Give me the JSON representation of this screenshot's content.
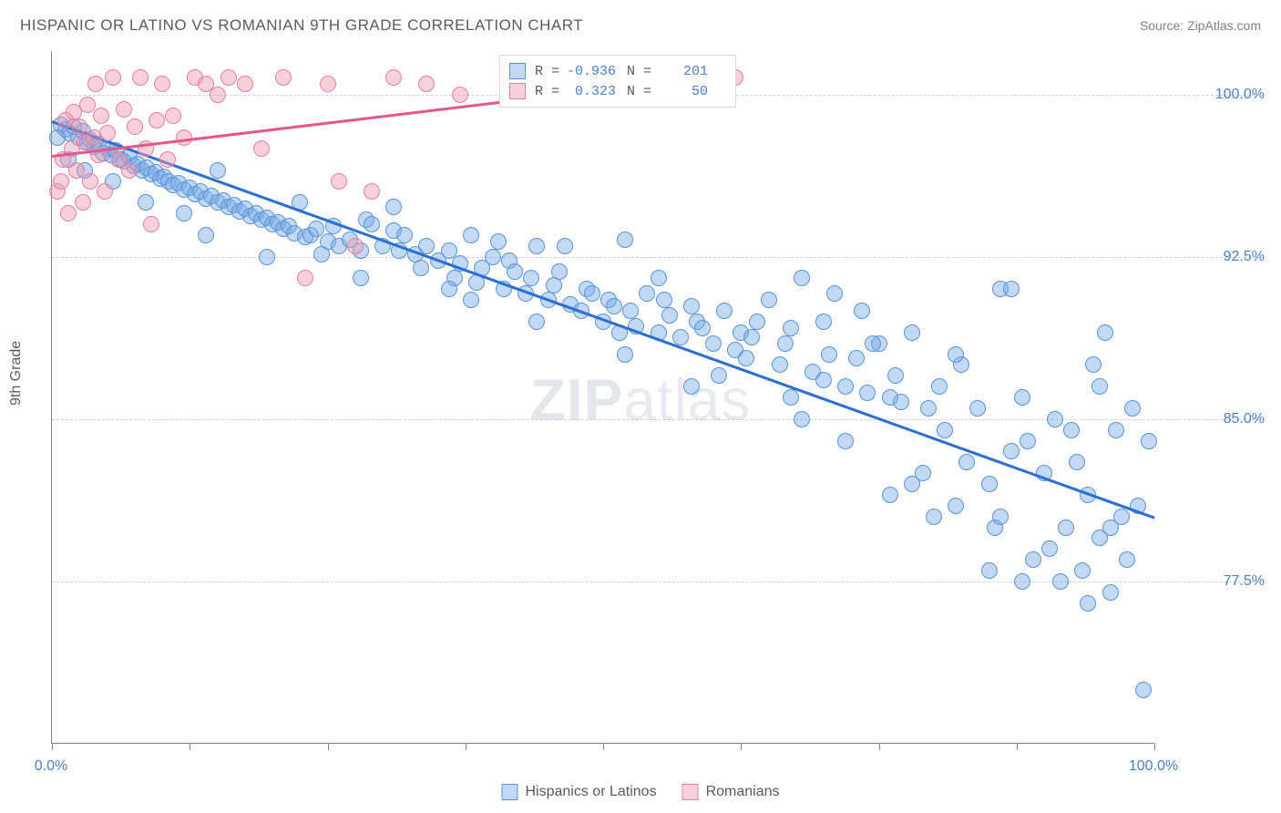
{
  "title": "HISPANIC OR LATINO VS ROMANIAN 9TH GRADE CORRELATION CHART",
  "source": "Source: ZipAtlas.com",
  "watermark_a": "ZIP",
  "watermark_b": "atlas",
  "ylabel": "9th Grade",
  "chart": {
    "type": "scatter",
    "xlim": [
      0,
      100
    ],
    "ylim": [
      70,
      102
    ],
    "ytick_labels": [
      "77.5%",
      "85.0%",
      "92.5%",
      "100.0%"
    ],
    "ytick_vals": [
      77.5,
      85.0,
      92.5,
      100.0
    ],
    "xtick_vals": [
      0,
      12.5,
      25,
      37.5,
      50,
      62.5,
      75,
      87.5,
      100
    ],
    "xtick_label_left": "0.0%",
    "xtick_label_right": "100.0%",
    "grid_color": "#d0d0d0",
    "axis_color": "#808080",
    "background_color": "#ffffff",
    "series": [
      {
        "name": "Hispanics or Latinos",
        "color_fill": "rgba(120,170,230,0.45)",
        "color_stroke": "#5a93d6",
        "marker_radius": 9,
        "trend_color": "#2a6fd6",
        "trend_width": 2.5,
        "trend_x0": 0,
        "trend_y0": 98.8,
        "trend_x1": 100,
        "trend_y1": 80.5,
        "R": "-0.936",
        "N": "201",
        "points": [
          [
            0.8,
            98.6
          ],
          [
            1.2,
            98.4
          ],
          [
            1.6,
            98.2
          ],
          [
            2.0,
            98.5
          ],
          [
            2.4,
            98.0
          ],
          [
            2.8,
            98.3
          ],
          [
            3.2,
            97.8
          ],
          [
            3.4,
            97.9
          ],
          [
            3.8,
            97.6
          ],
          [
            4.2,
            97.7
          ],
          [
            4.6,
            97.3
          ],
          [
            5.0,
            97.5
          ],
          [
            5.4,
            97.2
          ],
          [
            5.8,
            97.4
          ],
          [
            6.2,
            97.0
          ],
          [
            6.5,
            96.9
          ],
          [
            7.0,
            97.1
          ],
          [
            7.4,
            96.7
          ],
          [
            7.8,
            96.8
          ],
          [
            8.2,
            96.5
          ],
          [
            8.6,
            96.6
          ],
          [
            9.0,
            96.3
          ],
          [
            9.4,
            96.4
          ],
          [
            9.8,
            96.1
          ],
          [
            10.2,
            96.2
          ],
          [
            10.6,
            96.0
          ],
          [
            11.0,
            95.8
          ],
          [
            11.5,
            95.9
          ],
          [
            12.0,
            95.6
          ],
          [
            12.5,
            95.7
          ],
          [
            13.0,
            95.4
          ],
          [
            13.5,
            95.5
          ],
          [
            14.0,
            95.2
          ],
          [
            14.5,
            95.3
          ],
          [
            15.0,
            95.0
          ],
          [
            15.5,
            95.1
          ],
          [
            16.0,
            94.8
          ],
          [
            16.5,
            94.9
          ],
          [
            17.0,
            94.6
          ],
          [
            17.5,
            94.7
          ],
          [
            18.0,
            94.4
          ],
          [
            18.5,
            94.5
          ],
          [
            19.0,
            94.2
          ],
          [
            19.5,
            94.3
          ],
          [
            20.0,
            94.0
          ],
          [
            20.5,
            94.1
          ],
          [
            21.0,
            93.8
          ],
          [
            21.5,
            93.9
          ],
          [
            22.0,
            93.6
          ],
          [
            22.5,
            95.0
          ],
          [
            23.0,
            93.4
          ],
          [
            23.5,
            93.5
          ],
          [
            24.0,
            93.8
          ],
          [
            25.0,
            93.2
          ],
          [
            25.5,
            93.9
          ],
          [
            26.0,
            93.0
          ],
          [
            27.0,
            93.3
          ],
          [
            28.0,
            92.8
          ],
          [
            28.5,
            94.2
          ],
          [
            29.0,
            94.0
          ],
          [
            30.0,
            93.0
          ],
          [
            31.0,
            93.7
          ],
          [
            31.5,
            92.8
          ],
          [
            32.0,
            93.5
          ],
          [
            33.0,
            92.6
          ],
          [
            33.5,
            92.0
          ],
          [
            34.0,
            93.0
          ],
          [
            35.0,
            92.3
          ],
          [
            36.0,
            92.8
          ],
          [
            36.5,
            91.5
          ],
          [
            37.0,
            92.2
          ],
          [
            38.0,
            93.5
          ],
          [
            38.5,
            91.3
          ],
          [
            39.0,
            92.0
          ],
          [
            40.0,
            92.5
          ],
          [
            41.0,
            91.0
          ],
          [
            41.5,
            92.3
          ],
          [
            42.0,
            91.8
          ],
          [
            43.0,
            90.8
          ],
          [
            43.5,
            91.5
          ],
          [
            44.0,
            93.0
          ],
          [
            45.0,
            90.5
          ],
          [
            45.5,
            91.2
          ],
          [
            46.0,
            91.8
          ],
          [
            47.0,
            90.3
          ],
          [
            48.0,
            90.0
          ],
          [
            48.5,
            91.0
          ],
          [
            49.0,
            90.8
          ],
          [
            50.0,
            89.5
          ],
          [
            50.5,
            90.5
          ],
          [
            51.0,
            90.2
          ],
          [
            52.0,
            93.3
          ],
          [
            52.5,
            90.0
          ],
          [
            53.0,
            89.3
          ],
          [
            54.0,
            90.8
          ],
          [
            55.0,
            89.0
          ],
          [
            55.5,
            90.5
          ],
          [
            56.0,
            89.8
          ],
          [
            57.0,
            88.8
          ],
          [
            58.0,
            90.2
          ],
          [
            58.5,
            89.5
          ],
          [
            59.0,
            89.2
          ],
          [
            60.0,
            88.5
          ],
          [
            61.0,
            90.0
          ],
          [
            62.0,
            88.2
          ],
          [
            62.5,
            89.0
          ],
          [
            63.0,
            87.8
          ],
          [
            63.5,
            88.8
          ],
          [
            64.0,
            89.5
          ],
          [
            65.0,
            90.5
          ],
          [
            66.0,
            87.5
          ],
          [
            66.5,
            88.5
          ],
          [
            67.0,
            89.2
          ],
          [
            68.0,
            91.5
          ],
          [
            69.0,
            87.2
          ],
          [
            70.0,
            86.8
          ],
          [
            70.5,
            88.0
          ],
          [
            71.0,
            90.8
          ],
          [
            72.0,
            86.5
          ],
          [
            73.0,
            87.8
          ],
          [
            73.5,
            90.0
          ],
          [
            74.0,
            86.2
          ],
          [
            75.0,
            88.5
          ],
          [
            76.0,
            81.5
          ],
          [
            76.5,
            87.0
          ],
          [
            77.0,
            85.8
          ],
          [
            78.0,
            89.0
          ],
          [
            79.0,
            82.5
          ],
          [
            80.0,
            80.5
          ],
          [
            80.5,
            86.5
          ],
          [
            81.0,
            84.5
          ],
          [
            82.0,
            81.0
          ],
          [
            82.5,
            87.5
          ],
          [
            83.0,
            83.0
          ],
          [
            84.0,
            85.5
          ],
          [
            85.0,
            82.0
          ],
          [
            85.5,
            80.0
          ],
          [
            86.0,
            91.0
          ],
          [
            87.0,
            83.5
          ],
          [
            88.0,
            86.0
          ],
          [
            88.5,
            84.0
          ],
          [
            89.0,
            78.5
          ],
          [
            90.0,
            82.5
          ],
          [
            90.5,
            79.0
          ],
          [
            91.0,
            85.0
          ],
          [
            91.5,
            77.5
          ],
          [
            92.0,
            80.0
          ],
          [
            93.0,
            83.0
          ],
          [
            93.5,
            78.0
          ],
          [
            94.0,
            81.5
          ],
          [
            94.5,
            87.5
          ],
          [
            95.0,
            79.5
          ],
          [
            95.5,
            89.0
          ],
          [
            96.0,
            77.0
          ],
          [
            96.5,
            84.5
          ],
          [
            97.0,
            80.5
          ],
          [
            97.5,
            78.5
          ],
          [
            98.0,
            85.5
          ],
          [
            98.5,
            81.0
          ],
          [
            99.0,
            72.5
          ],
          [
            99.5,
            84.0
          ],
          [
            92.5,
            84.5
          ],
          [
            88.0,
            77.5
          ],
          [
            95.0,
            86.5
          ],
          [
            82.0,
            88.0
          ],
          [
            76.0,
            86.0
          ],
          [
            70.0,
            89.5
          ],
          [
            87.0,
            91.0
          ],
          [
            79.5,
            85.5
          ],
          [
            74.5,
            88.5
          ],
          [
            67.0,
            86.0
          ],
          [
            60.5,
            87.0
          ],
          [
            55.0,
            91.5
          ],
          [
            51.5,
            89.0
          ],
          [
            46.5,
            93.0
          ],
          [
            40.5,
            93.2
          ],
          [
            36.0,
            91.0
          ],
          [
            31.0,
            94.8
          ],
          [
            24.5,
            92.6
          ],
          [
            19.5,
            92.5
          ],
          [
            15.0,
            96.5
          ],
          [
            12.0,
            94.5
          ],
          [
            8.5,
            95.0
          ],
          [
            5.5,
            96.0
          ],
          [
            3.0,
            96.5
          ],
          [
            1.5,
            97.0
          ],
          [
            0.5,
            98.0
          ],
          [
            28.0,
            91.5
          ],
          [
            44.0,
            89.5
          ],
          [
            58.0,
            86.5
          ],
          [
            72.0,
            84.0
          ],
          [
            86.0,
            80.5
          ],
          [
            94.0,
            76.5
          ],
          [
            96.0,
            80.0
          ],
          [
            85.0,
            78.0
          ],
          [
            78.0,
            82.0
          ],
          [
            68.0,
            85.0
          ],
          [
            52.0,
            88.0
          ],
          [
            38.0,
            90.5
          ],
          [
            14.0,
            93.5
          ]
        ]
      },
      {
        "name": "Romanians",
        "color_fill": "rgba(240,150,175,0.45)",
        "color_stroke": "#e87fa0",
        "marker_radius": 9,
        "trend_color": "#e8558a",
        "trend_width": 2.5,
        "trend_x0": 0,
        "trend_y0": 97.2,
        "trend_x1": 62,
        "trend_y1": 101.0,
        "R": "0.323",
        "N": "50",
        "points": [
          [
            0.5,
            95.5
          ],
          [
            0.8,
            96.0
          ],
          [
            1.0,
            97.0
          ],
          [
            1.2,
            98.8
          ],
          [
            1.5,
            94.5
          ],
          [
            1.8,
            97.5
          ],
          [
            2.0,
            99.2
          ],
          [
            2.2,
            96.5
          ],
          [
            2.5,
            98.5
          ],
          [
            2.8,
            95.0
          ],
          [
            3.0,
            97.8
          ],
          [
            3.2,
            99.5
          ],
          [
            3.5,
            96.0
          ],
          [
            3.8,
            98.0
          ],
          [
            4.0,
            100.5
          ],
          [
            4.2,
            97.2
          ],
          [
            4.5,
            99.0
          ],
          [
            4.8,
            95.5
          ],
          [
            5.0,
            98.2
          ],
          [
            5.5,
            100.8
          ],
          [
            6.0,
            97.0
          ],
          [
            6.5,
            99.3
          ],
          [
            7.0,
            96.5
          ],
          [
            7.5,
            98.5
          ],
          [
            8.0,
            100.8
          ],
          [
            8.5,
            97.5
          ],
          [
            9.0,
            94.0
          ],
          [
            9.5,
            98.8
          ],
          [
            10.0,
            100.5
          ],
          [
            10.5,
            97.0
          ],
          [
            11.0,
            99.0
          ],
          [
            12.0,
            98.0
          ],
          [
            13.0,
            100.8
          ],
          [
            14.0,
            100.5
          ],
          [
            15.0,
            100.0
          ],
          [
            16.0,
            100.8
          ],
          [
            17.5,
            100.5
          ],
          [
            19.0,
            97.5
          ],
          [
            21.0,
            100.8
          ],
          [
            23.0,
            91.5
          ],
          [
            25.0,
            100.5
          ],
          [
            26.0,
            96.0
          ],
          [
            27.5,
            93.0
          ],
          [
            29.0,
            95.5
          ],
          [
            31.0,
            100.8
          ],
          [
            34.0,
            100.5
          ],
          [
            37.0,
            100.0
          ],
          [
            44.0,
            100.5
          ],
          [
            52.0,
            100.8
          ],
          [
            62.0,
            100.8
          ]
        ]
      }
    ],
    "legend_box": {
      "swatch1_fill": "rgba(120,170,230,0.45)",
      "swatch1_stroke": "#5a93d6",
      "swatch2_fill": "rgba(240,150,175,0.45)",
      "swatch2_stroke": "#e87fa0"
    }
  }
}
